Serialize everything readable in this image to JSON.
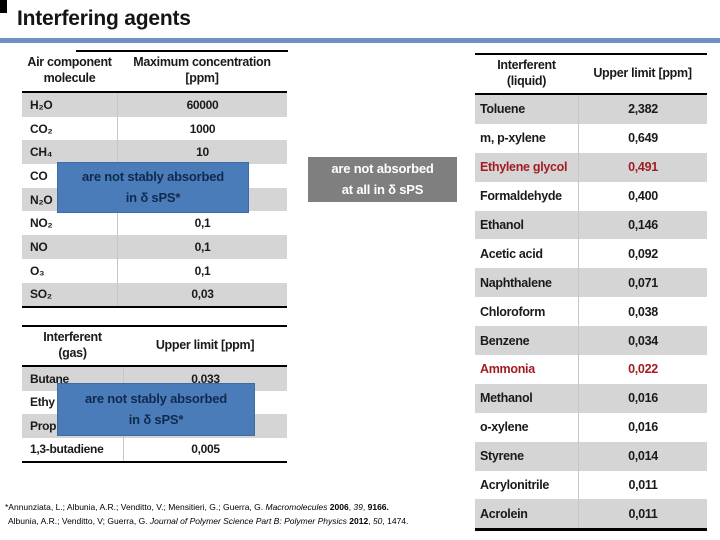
{
  "slide": {
    "title": "Interfering agents",
    "accent_line_color": "#7191c0",
    "overlay_blue_color": "#4b7cba",
    "overlay_gray_color": "#7f7f7f",
    "highlight_text_color": "#a11d22"
  },
  "air_table": {
    "col1_header": "Air component\nmolecule",
    "col2_header": "Maximum concentration\n[ppm]",
    "rows": [
      {
        "name": "H₂O",
        "value": "60000",
        "shaded": true
      },
      {
        "name": "CO₂",
        "value": "1000",
        "shaded": false
      },
      {
        "name": "CH₄",
        "value": "10",
        "shaded": true
      },
      {
        "name": "CO",
        "value": "",
        "shaded": false
      },
      {
        "name": "N₂O",
        "value": "",
        "shaded": true
      },
      {
        "name": "NO₂",
        "value": "0,1",
        "shaded": false
      },
      {
        "name": "NO",
        "value": "0,1",
        "shaded": true
      },
      {
        "name": "O₃",
        "value": "0,1",
        "shaded": false
      },
      {
        "name": "SO₂",
        "value": "0,03",
        "shaded": true
      }
    ]
  },
  "liquid_table": {
    "col1_header": "Interferent\n(liquid)",
    "col2_header": "Upper limit [ppm]",
    "rows": [
      {
        "name": "Toluene",
        "value": "2,382",
        "shaded": true,
        "highlight": false
      },
      {
        "name": "m, p-xylene",
        "value": "0,649",
        "shaded": false,
        "highlight": false
      },
      {
        "name": "Ethylene glycol",
        "value": "0,491",
        "shaded": true,
        "highlight": true
      },
      {
        "name": "Formaldehyde",
        "value": "0,400",
        "shaded": false,
        "highlight": false
      },
      {
        "name": "Ethanol",
        "value": "0,146",
        "shaded": true,
        "highlight": false
      },
      {
        "name": "Acetic acid",
        "value": "0,092",
        "shaded": false,
        "highlight": false
      },
      {
        "name": "Naphthalene",
        "value": "0,071",
        "shaded": true,
        "highlight": false
      },
      {
        "name": "Chloroform",
        "value": "0,038",
        "shaded": false,
        "highlight": false
      },
      {
        "name": "Benzene",
        "value": "0,034",
        "shaded": true,
        "highlight": false
      },
      {
        "name": "Ammonia",
        "value": "0,022",
        "shaded": false,
        "highlight": true
      },
      {
        "name": "Methanol",
        "value": "0,016",
        "shaded": true,
        "highlight": false
      },
      {
        "name": "o-xylene",
        "value": "0,016",
        "shaded": false,
        "highlight": false
      },
      {
        "name": "Styrene",
        "value": "0,014",
        "shaded": true,
        "highlight": false
      },
      {
        "name": "Acrylonitrile",
        "value": "0,011",
        "shaded": false,
        "highlight": false
      },
      {
        "name": "Acrolein",
        "value": "0,011",
        "shaded": true,
        "highlight": false
      }
    ]
  },
  "gas_table": {
    "col1_header": "Interferent\n(gas)",
    "col2_header": "Upper limit [ppm]",
    "rows": [
      {
        "name": "Butane",
        "value": "0,033",
        "shaded": true
      },
      {
        "name": "Ethy",
        "value": "",
        "shaded": false
      },
      {
        "name": "Prop",
        "value": "",
        "shaded": true
      },
      {
        "name": "1,3-butadiene",
        "value": "0,005",
        "shaded": false
      }
    ]
  },
  "overlay_not_stably_1": {
    "line1": "are not stably absorbed",
    "line2": "in δ sPS*"
  },
  "overlay_not_absorbed": {
    "line1": "are not absorbed",
    "line2": "at all in δ sPS"
  },
  "overlay_not_stably_2": {
    "line1": "are not stably absorbed",
    "line2": "in δ sPS*"
  },
  "footnote": {
    "line1_parts": [
      {
        "text": "*Annunziata, L.; Albunia, A.R.; Venditto, V.; Mensitieri, G.; Guerra, G. ",
        "style": "plain"
      },
      {
        "text": "Macromolecules",
        "style": "italic"
      },
      {
        "text": " ",
        "style": "plain"
      },
      {
        "text": "2006",
        "style": "bold"
      },
      {
        "text": ", ",
        "style": "plain"
      },
      {
        "text": "39",
        "style": "italic"
      },
      {
        "text": ", ",
        "style": "plain"
      },
      {
        "text": "9166.",
        "style": "bold"
      }
    ],
    "line2_parts": [
      {
        "text": "Albunia, A.R.; Venditto, V; Guerra, G. ",
        "style": "plain"
      },
      {
        "text": "Journal of Polymer Science Part B: Polymer Physics",
        "style": "italic"
      },
      {
        "text": " ",
        "style": "plain"
      },
      {
        "text": "2012",
        "style": "bold"
      },
      {
        "text": ", ",
        "style": "plain"
      },
      {
        "text": "50",
        "style": "italic"
      },
      {
        "text": ", 1474.",
        "style": "plain"
      }
    ]
  }
}
